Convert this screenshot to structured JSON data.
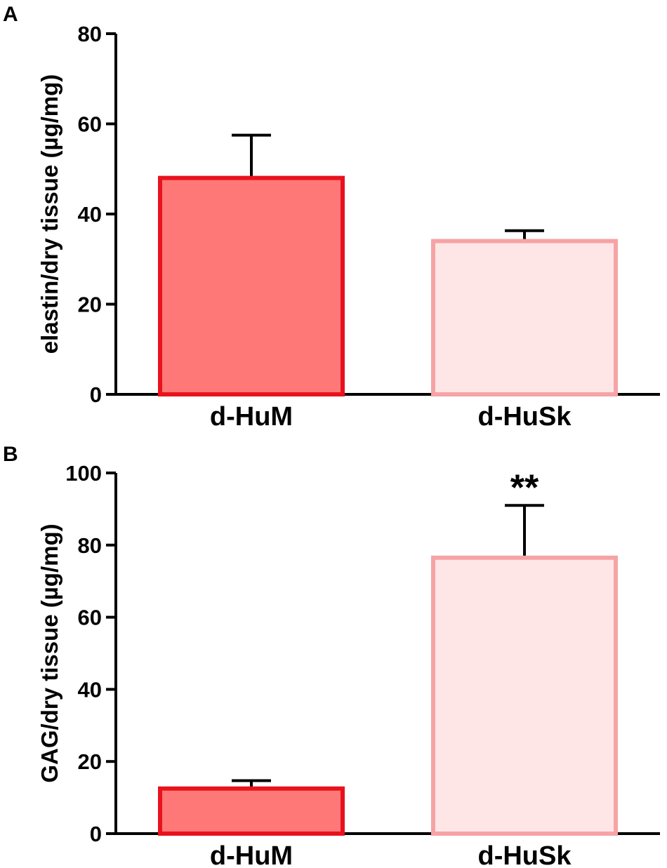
{
  "chart_data": [
    {
      "panel_label": "A",
      "type": "bar",
      "categories": [
        "d-HuM",
        "d-HuSk"
      ],
      "values": [
        48,
        34
      ],
      "errors": [
        9.5,
        2.3
      ],
      "ylabel": "elastin/dry tissue (µg/mg)",
      "ylim": [
        0,
        80
      ],
      "yticks": [
        "0",
        "20",
        "40",
        "60",
        "80"
      ],
      "annotations": [
        "",
        ""
      ],
      "grid": false,
      "colors": {
        "fill": [
          "#FF7878",
          "#FFE6E6"
        ],
        "stroke": [
          "#E8121D",
          "#F6A3A6"
        ]
      }
    },
    {
      "panel_label": "B",
      "type": "bar",
      "categories": [
        "d-HuM",
        "d-HuSk"
      ],
      "values": [
        12.5,
        76.5
      ],
      "errors": [
        2.2,
        14.5
      ],
      "ylabel": "GAG/dry tissue (µg/mg)",
      "ylim": [
        0,
        100
      ],
      "yticks": [
        "0",
        "20",
        "40",
        "60",
        "80",
        "100"
      ],
      "annotations": [
        "",
        "**"
      ],
      "grid": false,
      "colors": {
        "fill": [
          "#FF7878",
          "#FFE6E6"
        ],
        "stroke": [
          "#E8121D",
          "#F6A3A6"
        ]
      }
    }
  ]
}
